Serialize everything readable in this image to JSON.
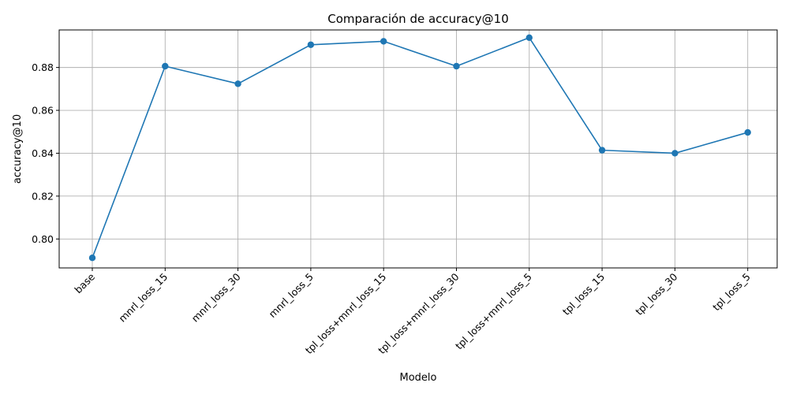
{
  "chart_data": {
    "type": "line",
    "title": "Comparación de accuracy@10",
    "xlabel": "Modelo",
    "ylabel": "accuracy@10",
    "categories": [
      "base",
      "mnrl_loss_15",
      "mnrl_loss_30",
      "mnrl_loss_5",
      "tpl_loss+mnrl_loss_15",
      "tpl_loss+mnrl_loss_30",
      "tpl_loss+mnrl_loss_5",
      "tpl_loss_15",
      "tpl_loss_30",
      "tpl_loss_5"
    ],
    "series": [
      {
        "values": [
          0.7912,
          0.8806,
          0.8724,
          0.8906,
          0.8922,
          0.8806,
          0.8939,
          0.8414,
          0.84,
          0.8497
        ],
        "color": "#1f77b4",
        "marker": "circle"
      }
    ],
    "ylim": [
      0.7865,
      0.8975
    ],
    "yticks": [
      0.8,
      0.82,
      0.84,
      0.86,
      0.88
    ],
    "ytick_labels": [
      "0.80",
      "0.82",
      "0.84",
      "0.86",
      "0.88"
    ],
    "grid": true,
    "legend": "none"
  }
}
